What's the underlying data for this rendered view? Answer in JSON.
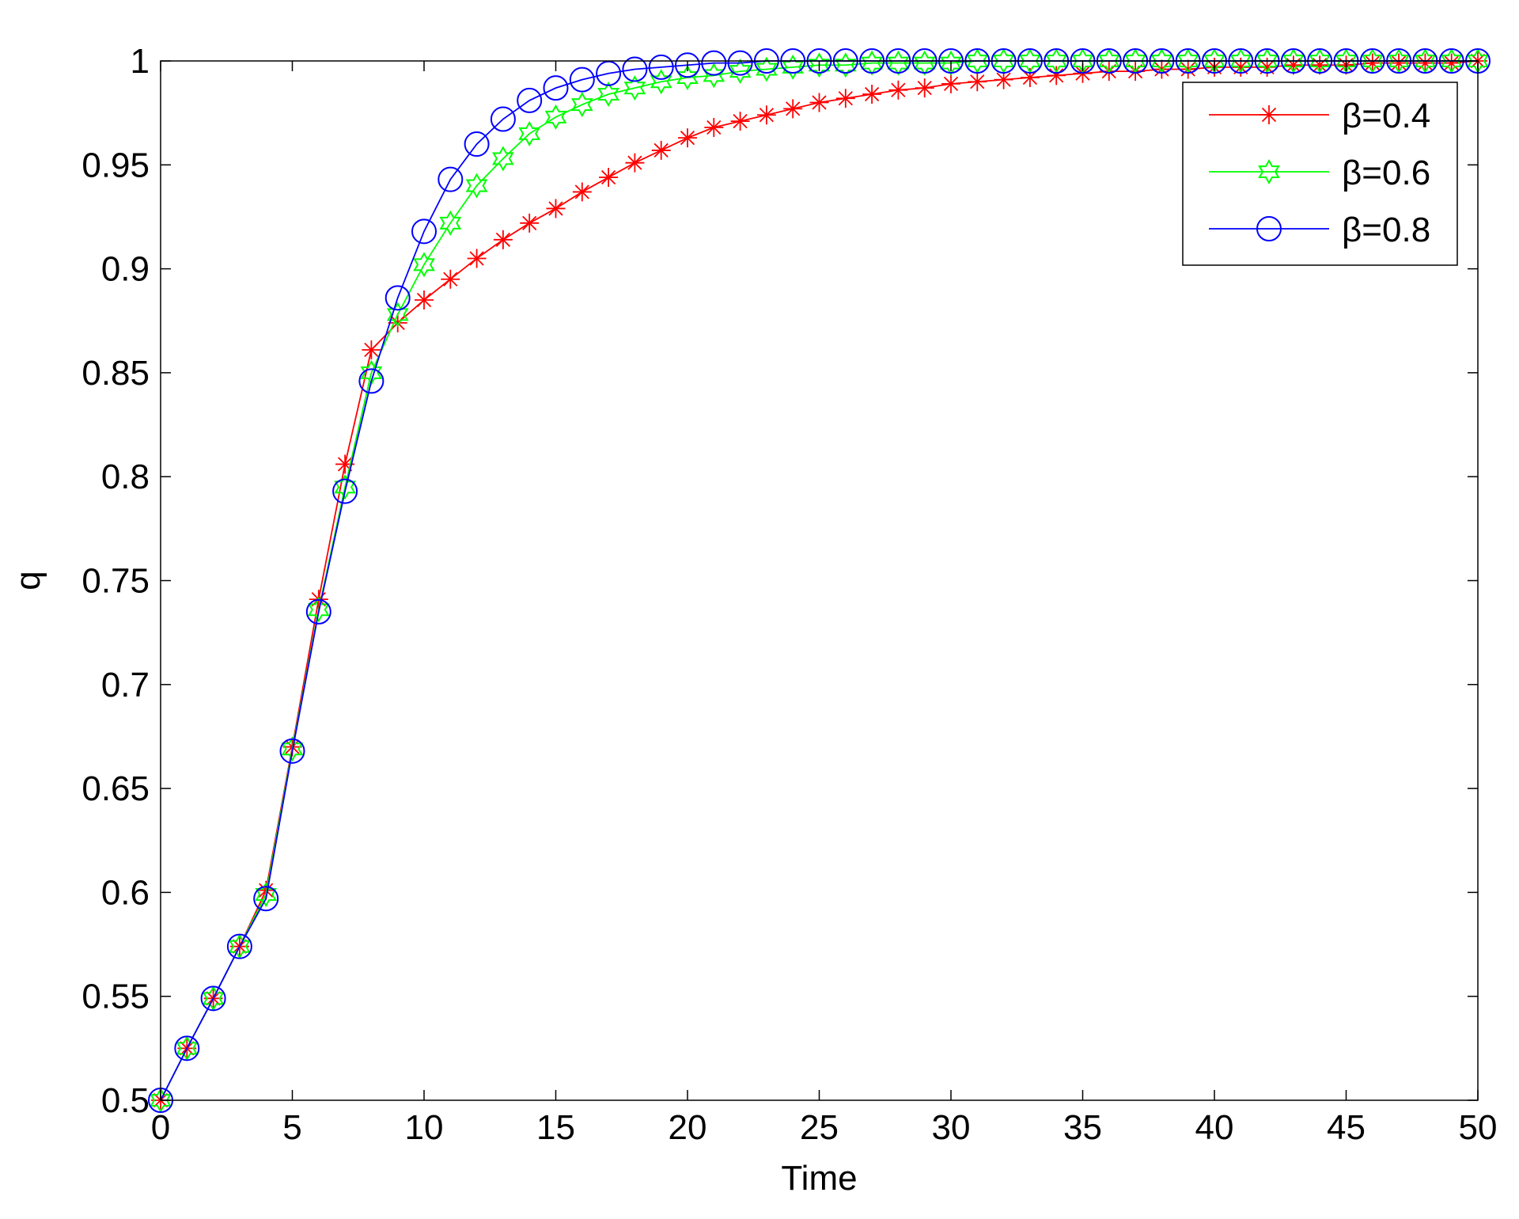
{
  "chart_data": {
    "type": "line",
    "title": "",
    "xlabel": "Time",
    "ylabel": "q",
    "xlim": [
      0,
      50
    ],
    "ylim": [
      0.5,
      1
    ],
    "xticks": [
      0,
      5,
      10,
      15,
      20,
      25,
      30,
      35,
      40,
      45,
      50
    ],
    "xtick_labels": [
      "0",
      "5",
      "10",
      "15",
      "20",
      "25",
      "30",
      "35",
      "40",
      "45",
      "50"
    ],
    "yticks": [
      0.5,
      0.55,
      0.6,
      0.65,
      0.7,
      0.75,
      0.8,
      0.85,
      0.9,
      0.95,
      1
    ],
    "ytick_labels": [
      "0.5",
      "0.55",
      "0.6",
      "0.65",
      "0.7",
      "0.75",
      "0.8",
      "0.85",
      "0.9",
      "0.95",
      "1"
    ],
    "grid": false,
    "legend_position": "top-right",
    "x": [
      0,
      1,
      2,
      3,
      4,
      5,
      6,
      7,
      8,
      9,
      10,
      11,
      12,
      13,
      14,
      15,
      16,
      17,
      18,
      19,
      20,
      21,
      22,
      23,
      24,
      25,
      26,
      27,
      28,
      29,
      30,
      31,
      32,
      33,
      34,
      35,
      36,
      37,
      38,
      39,
      40,
      41,
      42,
      43,
      44,
      45,
      46,
      47,
      48,
      49,
      50
    ],
    "series": [
      {
        "name": "β=0.4",
        "color": "#ff0000",
        "marker": "asterisk",
        "values": [
          0.5,
          0.525,
          0.549,
          0.574,
          0.601,
          0.67,
          0.741,
          0.806,
          0.861,
          0.874,
          0.885,
          0.895,
          0.905,
          0.914,
          0.922,
          0.929,
          0.937,
          0.944,
          0.951,
          0.957,
          0.963,
          0.968,
          0.971,
          0.974,
          0.977,
          0.98,
          0.982,
          0.984,
          0.986,
          0.987,
          0.989,
          0.99,
          0.991,
          0.992,
          0.993,
          0.994,
          0.995,
          0.995,
          0.996,
          0.996,
          0.997,
          0.997,
          0.997,
          0.998,
          0.998,
          0.998,
          0.999,
          0.999,
          0.999,
          0.999,
          1.0
        ]
      },
      {
        "name": "β=0.6",
        "color": "#00ff00",
        "marker": "hexagram",
        "values": [
          0.5,
          0.525,
          0.549,
          0.574,
          0.599,
          0.669,
          0.736,
          0.795,
          0.85,
          0.878,
          0.902,
          0.922,
          0.94,
          0.953,
          0.965,
          0.973,
          0.979,
          0.984,
          0.987,
          0.99,
          0.992,
          0.993,
          0.995,
          0.996,
          0.997,
          0.998,
          0.998,
          0.999,
          0.999,
          0.999,
          0.999,
          1.0,
          1.0,
          1.0,
          1.0,
          1.0,
          1.0,
          1.0,
          1.0,
          1.0,
          1.0,
          1.0,
          1.0,
          1.0,
          1.0,
          1.0,
          1.0,
          1.0,
          1.0,
          1.0,
          1.0
        ]
      },
      {
        "name": "β=0.8",
        "color": "#0000ff",
        "marker": "circle",
        "values": [
          0.5,
          0.525,
          0.549,
          0.574,
          0.597,
          0.668,
          0.735,
          0.793,
          0.846,
          0.886,
          0.918,
          0.943,
          0.96,
          0.972,
          0.981,
          0.987,
          0.991,
          0.994,
          0.996,
          0.997,
          0.998,
          0.999,
          0.999,
          1.0,
          1.0,
          1.0,
          1.0,
          1.0,
          1.0,
          1.0,
          1.0,
          1.0,
          1.0,
          1.0,
          1.0,
          1.0,
          1.0,
          1.0,
          1.0,
          1.0,
          1.0,
          1.0,
          1.0,
          1.0,
          1.0,
          1.0,
          1.0,
          1.0,
          1.0,
          1.0,
          1.0
        ]
      }
    ]
  }
}
